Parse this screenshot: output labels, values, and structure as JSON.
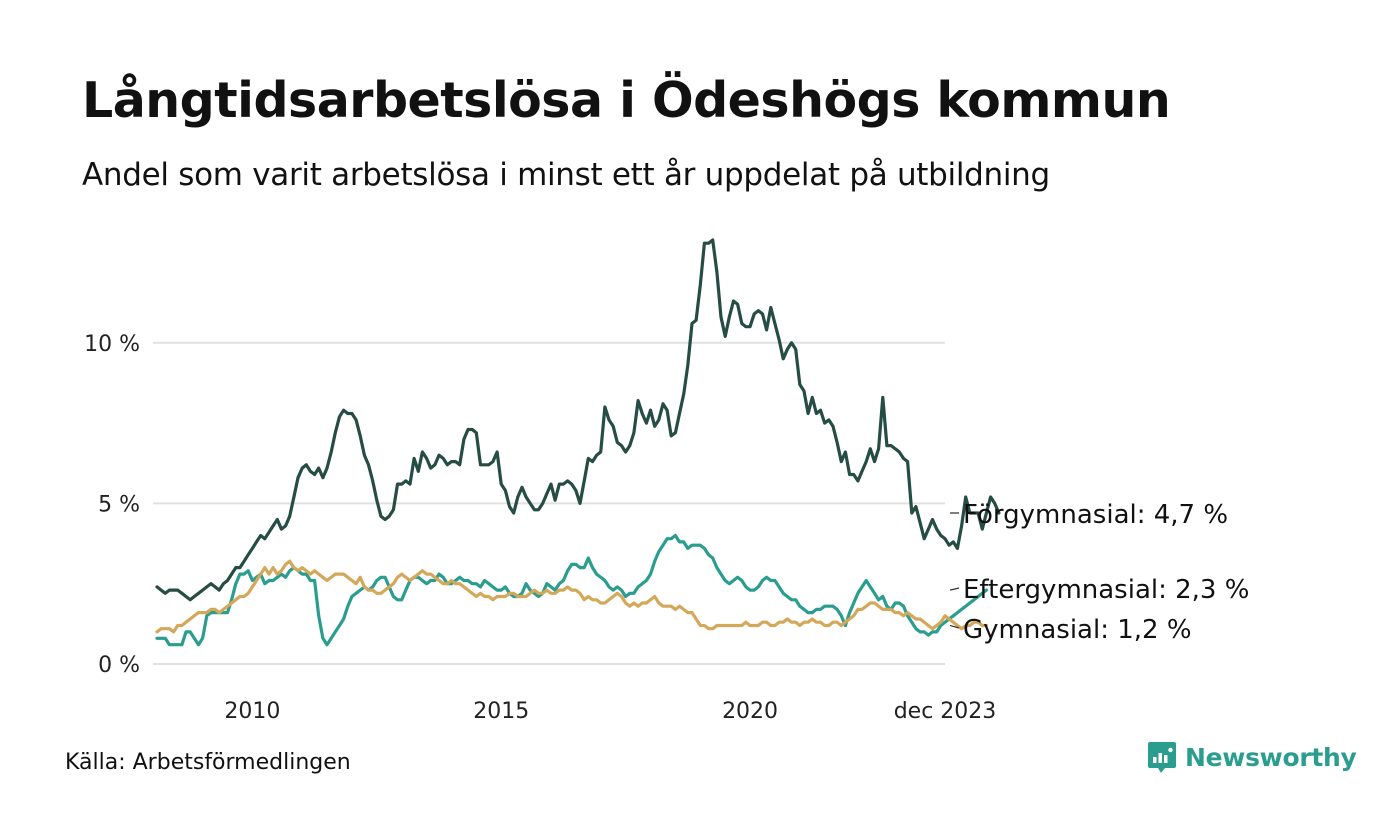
{
  "title": "Långtidsarbetslösa i Ödeshögs kommun",
  "subtitle": "Andel som varit arbetslösa i minst ett år uppdelat på utbildning",
  "source": "Källa: Arbetsförmedlingen",
  "brand": {
    "name": "Newsworthy",
    "icon": "newsworthy-logo-icon"
  },
  "chart_data": {
    "type": "line",
    "title": "Långtidsarbetslösa i Ödeshögs kommun",
    "xlabel": "",
    "ylabel": "",
    "x_start": 2008.083,
    "x_step": 0.083333,
    "xlim": [
      2008.083,
      2023.917
    ],
    "ylim": [
      0,
      13.2
    ],
    "grid": true,
    "y_ticks": [
      {
        "value": 0,
        "label": "0 %"
      },
      {
        "value": 5,
        "label": "5 %"
      },
      {
        "value": 10,
        "label": "10 %"
      }
    ],
    "x_ticks": [
      {
        "value": 2010,
        "label": "2010"
      },
      {
        "value": 2015,
        "label": "2015"
      },
      {
        "value": 2020,
        "label": "2020"
      },
      {
        "value": 2023.917,
        "label": "dec 2023"
      }
    ],
    "series": [
      {
        "name": "Förgymnasial",
        "label": "Förgymnasial: 4,7 %",
        "color": "#264d43",
        "values": [
          2.4,
          2.3,
          2.2,
          2.3,
          2.3,
          2.3,
          2.2,
          2.1,
          2.0,
          2.1,
          2.2,
          2.3,
          2.4,
          2.5,
          2.4,
          2.3,
          2.5,
          2.6,
          2.8,
          3.0,
          3.0,
          3.2,
          3.4,
          3.6,
          3.8,
          4.0,
          3.9,
          4.1,
          4.3,
          4.5,
          4.2,
          4.3,
          4.6,
          5.2,
          5.8,
          6.1,
          6.2,
          6.0,
          5.9,
          6.1,
          5.8,
          6.1,
          6.6,
          7.2,
          7.7,
          7.9,
          7.8,
          7.8,
          7.6,
          7.1,
          6.5,
          6.2,
          5.7,
          5.1,
          4.6,
          4.5,
          4.6,
          4.8,
          5.6,
          5.6,
          5.7,
          5.6,
          6.4,
          6.0,
          6.6,
          6.4,
          6.1,
          6.2,
          6.5,
          6.4,
          6.2,
          6.3,
          6.3,
          6.2,
          7.0,
          7.3,
          7.3,
          7.2,
          6.2,
          6.2,
          6.2,
          6.3,
          6.6,
          5.6,
          5.4,
          4.9,
          4.7,
          5.2,
          5.5,
          5.2,
          5.0,
          4.8,
          4.8,
          5.0,
          5.3,
          5.6,
          5.1,
          5.6,
          5.6,
          5.7,
          5.6,
          5.4,
          5.0,
          5.7,
          6.4,
          6.3,
          6.5,
          6.6,
          8.0,
          7.6,
          7.4,
          6.9,
          6.8,
          6.6,
          6.8,
          7.2,
          8.2,
          7.8,
          7.5,
          7.9,
          7.4,
          7.6,
          8.1,
          7.9,
          7.1,
          7.2,
          7.8,
          8.4,
          9.3,
          10.6,
          10.7,
          11.8,
          13.1,
          13.1,
          13.2,
          12.2,
          10.8,
          10.2,
          10.8,
          11.3,
          11.2,
          10.6,
          10.5,
          10.5,
          10.9,
          11.0,
          10.9,
          10.4,
          11.1,
          10.6,
          10.1,
          9.5,
          9.8,
          10.0,
          9.8,
          8.7,
          8.5,
          7.8,
          8.3,
          7.8,
          7.9,
          7.5,
          7.6,
          7.4,
          6.9,
          6.3,
          6.6,
          5.9,
          5.9,
          5.7,
          6.0,
          6.3,
          6.7,
          6.3,
          6.7,
          8.3,
          6.8,
          6.8,
          6.7,
          6.6,
          6.4,
          6.3,
          4.7,
          4.9,
          4.4,
          3.9,
          4.2,
          4.5,
          4.2,
          4.0,
          3.9,
          3.7,
          3.8,
          3.6,
          4.3,
          5.2,
          4.7,
          4.7,
          4.7,
          4.2,
          4.7,
          5.2,
          5.0,
          4.7
        ]
      },
      {
        "name": "Eftergymnasial",
        "label": "Eftergymnasial: 2,3 %",
        "color": "#2a9d8f",
        "values": [
          0.8,
          0.8,
          0.8,
          0.6,
          0.6,
          0.6,
          0.6,
          1.0,
          1.0,
          0.8,
          0.6,
          0.8,
          1.5,
          1.6,
          1.6,
          1.6,
          1.6,
          1.6,
          2.0,
          2.5,
          2.8,
          2.8,
          2.9,
          2.6,
          2.7,
          2.8,
          2.5,
          2.6,
          2.6,
          2.7,
          2.8,
          2.7,
          2.9,
          3.0,
          2.9,
          2.8,
          2.8,
          2.6,
          2.6,
          1.5,
          0.8,
          0.6,
          0.8,
          1.0,
          1.2,
          1.4,
          1.8,
          2.1,
          2.2,
          2.3,
          2.4,
          2.3,
          2.4,
          2.6,
          2.7,
          2.7,
          2.4,
          2.1,
          2.0,
          2.0,
          2.3,
          2.6,
          2.7,
          2.7,
          2.6,
          2.5,
          2.6,
          2.6,
          2.8,
          2.7,
          2.5,
          2.5,
          2.6,
          2.7,
          2.6,
          2.6,
          2.5,
          2.5,
          2.4,
          2.6,
          2.5,
          2.4,
          2.3,
          2.3,
          2.4,
          2.2,
          2.1,
          2.1,
          2.2,
          2.5,
          2.3,
          2.2,
          2.1,
          2.2,
          2.5,
          2.4,
          2.3,
          2.5,
          2.6,
          2.9,
          3.1,
          3.1,
          3.0,
          3.0,
          3.3,
          3.0,
          2.8,
          2.7,
          2.6,
          2.4,
          2.3,
          2.4,
          2.3,
          2.1,
          2.2,
          2.2,
          2.4,
          2.5,
          2.6,
          2.8,
          3.2,
          3.5,
          3.7,
          3.9,
          3.9,
          4.0,
          3.8,
          3.8,
          3.6,
          3.7,
          3.7,
          3.7,
          3.6,
          3.4,
          3.3,
          3.0,
          2.8,
          2.6,
          2.5,
          2.6,
          2.7,
          2.6,
          2.4,
          2.3,
          2.3,
          2.4,
          2.6,
          2.7,
          2.6,
          2.6,
          2.4,
          2.2,
          2.1,
          2.0,
          2.0,
          1.8,
          1.7,
          1.6,
          1.6,
          1.7,
          1.7,
          1.8,
          1.8,
          1.8,
          1.7,
          1.5,
          1.2,
          1.6,
          1.9,
          2.2,
          2.4,
          2.6,
          2.4,
          2.2,
          2.0,
          2.1,
          1.8,
          1.7,
          1.9,
          1.9,
          1.8,
          1.5,
          1.3,
          1.1,
          1.0,
          1.0,
          0.9,
          1.0,
          1.0,
          1.2,
          1.3,
          1.4,
          1.5,
          1.6,
          1.7,
          1.8,
          1.9,
          2.0,
          2.1,
          2.2,
          2.3
        ]
      },
      {
        "name": "Gymnasial",
        "label": "Gymnasial: 1,2 %",
        "color": "#d4a85a",
        "values": [
          1.0,
          1.1,
          1.1,
          1.1,
          1.0,
          1.2,
          1.2,
          1.3,
          1.4,
          1.5,
          1.6,
          1.6,
          1.6,
          1.7,
          1.7,
          1.6,
          1.7,
          1.8,
          1.9,
          2.0,
          2.1,
          2.1,
          2.2,
          2.4,
          2.6,
          2.8,
          3.0,
          2.8,
          3.0,
          2.8,
          2.9,
          3.1,
          3.2,
          3.0,
          2.9,
          3.0,
          2.9,
          2.8,
          2.9,
          2.8,
          2.7,
          2.6,
          2.7,
          2.8,
          2.8,
          2.8,
          2.7,
          2.6,
          2.5,
          2.7,
          2.4,
          2.3,
          2.3,
          2.2,
          2.2,
          2.3,
          2.4,
          2.5,
          2.7,
          2.8,
          2.7,
          2.6,
          2.7,
          2.8,
          2.9,
          2.8,
          2.8,
          2.7,
          2.6,
          2.5,
          2.5,
          2.6,
          2.5,
          2.5,
          2.4,
          2.3,
          2.2,
          2.1,
          2.2,
          2.1,
          2.1,
          2.0,
          2.1,
          2.1,
          2.1,
          2.2,
          2.2,
          2.1,
          2.1,
          2.1,
          2.2,
          2.3,
          2.2,
          2.2,
          2.3,
          2.2,
          2.2,
          2.3,
          2.3,
          2.4,
          2.3,
          2.3,
          2.2,
          2.0,
          2.1,
          2.0,
          2.0,
          1.9,
          1.9,
          2.0,
          2.1,
          2.2,
          2.1,
          1.9,
          1.8,
          1.9,
          1.8,
          1.9,
          1.9,
          2.0,
          2.1,
          1.9,
          1.8,
          1.8,
          1.8,
          1.7,
          1.8,
          1.7,
          1.6,
          1.6,
          1.4,
          1.2,
          1.2,
          1.1,
          1.1,
          1.2,
          1.2,
          1.2,
          1.2,
          1.2,
          1.2,
          1.2,
          1.3,
          1.2,
          1.2,
          1.2,
          1.3,
          1.3,
          1.2,
          1.2,
          1.3,
          1.3,
          1.4,
          1.3,
          1.3,
          1.2,
          1.3,
          1.3,
          1.4,
          1.3,
          1.3,
          1.2,
          1.2,
          1.3,
          1.3,
          1.2,
          1.3,
          1.4,
          1.5,
          1.7,
          1.7,
          1.8,
          1.9,
          1.9,
          1.8,
          1.7,
          1.7,
          1.7,
          1.6,
          1.6,
          1.5,
          1.6,
          1.5,
          1.4,
          1.4,
          1.3,
          1.2,
          1.1,
          1.2,
          1.3,
          1.5,
          1.4,
          1.3,
          1.2,
          1.1,
          1.2,
          1.2,
          1.3,
          1.3,
          1.2,
          1.2
        ]
      }
    ]
  }
}
